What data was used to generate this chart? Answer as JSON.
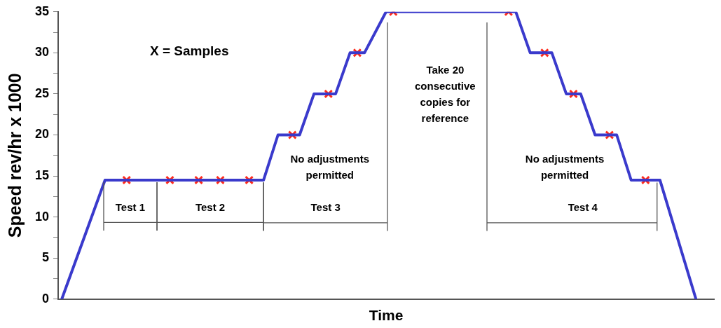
{
  "chart_data": {
    "type": "line",
    "xlabel": "Time",
    "ylabel": "Speed rev/hr x 1000",
    "categories": [
      null,
      null,
      null,
      null,
      null,
      null,
      null,
      null,
      null,
      null,
      null,
      null,
      null,
      null,
      null,
      null,
      null,
      null,
      null,
      null,
      null,
      null,
      null,
      null,
      null,
      null,
      null,
      null,
      null,
      null,
      null,
      null,
      null,
      null,
      null,
      null,
      null,
      null,
      null,
      null,
      null,
      null,
      null,
      null,
      null,
      null,
      null,
      null,
      null,
      null,
      null,
      null,
      null,
      null,
      null,
      null,
      null,
      null,
      null,
      null,
      null,
      null,
      null,
      null,
      null,
      null,
      null,
      null,
      null,
      null,
      null,
      null,
      null,
      null,
      null,
      null,
      null,
      null,
      null,
      null,
      null,
      null,
      null,
      null,
      null,
      null,
      null,
      null,
      null,
      null,
      null
    ],
    "ylim": [
      0,
      35
    ],
    "yticks": [
      0,
      {
        "value": 2.5,
        "label": null
      },
      5,
      {
        "value": 7.5,
        "label": null
      },
      10,
      {
        "value": 12.5,
        "label": null
      },
      15,
      {
        "value": 17.5,
        "label": null
      },
      20,
      {
        "value": 22.5,
        "label": null
      },
      25,
      {
        "value": 27.5,
        "label": null
      },
      30,
      {
        "value": 32.5,
        "label": null
      },
      35
    ],
    "tick_labels": "y",
    "grid": false,
    "legend": false,
    "series": [
      {
        "color": "#3a3acc",
        "marker": "none",
        "line_style": "solid",
        "values": [
          0,
          null,
          null,
          null,
          null,
          null,
          14.5,
          null,
          null,
          null,
          null,
          null,
          null,
          null,
          null,
          null,
          null,
          null,
          null,
          null,
          null,
          null,
          null,
          null,
          null,
          null,
          null,
          null,
          14.5,
          null,
          20,
          null,
          null,
          20,
          null,
          25,
          null,
          null,
          25,
          null,
          30,
          null,
          30,
          null,
          null,
          35,
          null,
          null,
          null,
          null,
          null,
          null,
          null,
          null,
          null,
          null,
          null,
          null,
          null,
          null,
          null,
          null,
          null,
          35,
          null,
          30,
          null,
          null,
          30,
          null,
          25,
          null,
          25,
          null,
          20,
          null,
          null,
          20,
          null,
          14.5,
          null,
          null,
          null,
          14.5,
          null,
          null,
          null,
          null,
          0,
          null,
          null
        ]
      },
      {
        "type": "scatter",
        "color": "#ff2a1a",
        "marker": "cross",
        "values": [
          null,
          null,
          null,
          null,
          null,
          null,
          null,
          null,
          null,
          14.5,
          null,
          null,
          null,
          null,
          null,
          14.5,
          null,
          null,
          null,
          14.5,
          null,
          null,
          14.5,
          null,
          null,
          null,
          14.5,
          null,
          null,
          null,
          null,
          null,
          20,
          null,
          null,
          null,
          null,
          25,
          null,
          null,
          null,
          30,
          null,
          null,
          null,
          null,
          35,
          null,
          null,
          null,
          null,
          null,
          null,
          null,
          null,
          null,
          null,
          null,
          null,
          null,
          null,
          null,
          35,
          null,
          null,
          null,
          null,
          30,
          null,
          null,
          null,
          25,
          null,
          null,
          null,
          null,
          20,
          null,
          null,
          null,
          null,
          14.5,
          null,
          null,
          null,
          null,
          null,
          null,
          null,
          null,
          null
        ]
      }
    ],
    "annotations": [
      "X = Samples",
      "Take 20\nconsecutive\ncopies for\nreference",
      "No adjustments\npermitted",
      "No adjustments\npermitted",
      "Test 1",
      "Test 2",
      "Test 3",
      "Test 4"
    ]
  }
}
